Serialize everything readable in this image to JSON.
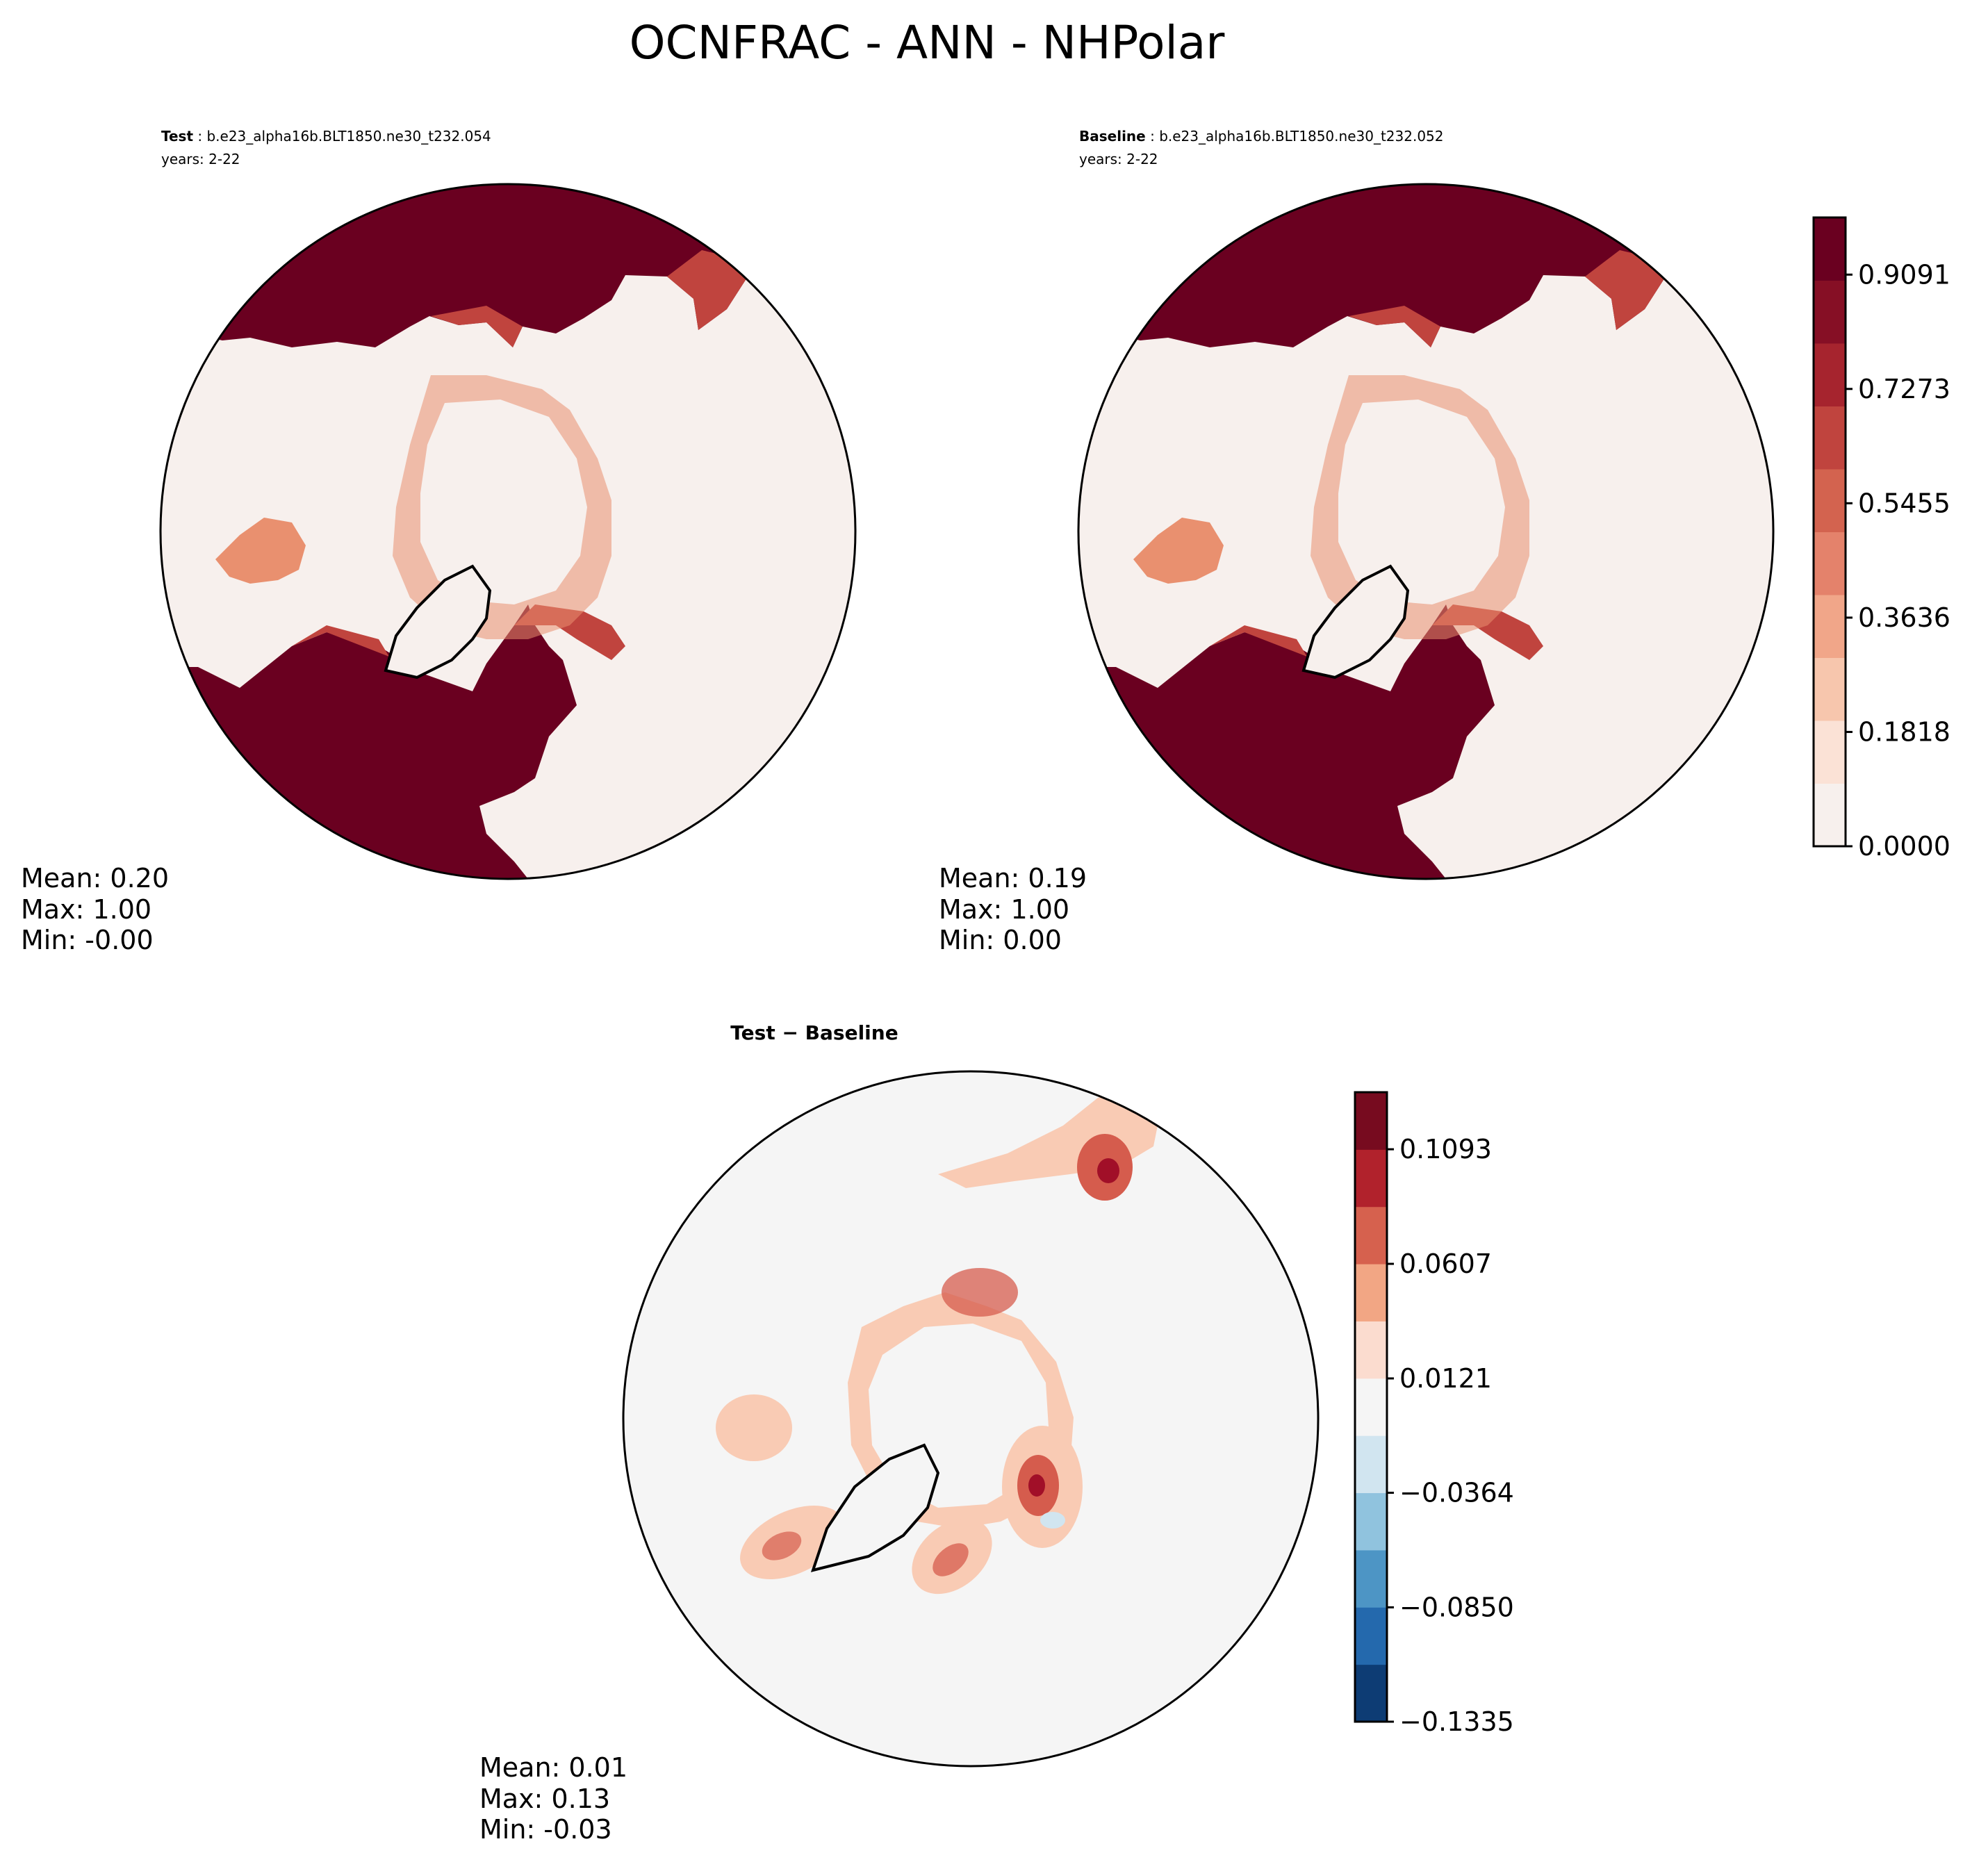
{
  "figure": {
    "title": "OCNFRAC - ANN - NHPolar"
  },
  "chart_data": [
    {
      "type": "contour-map",
      "panel": "test",
      "label": "Test",
      "case": "b.e23_alpha16b.BLT1850.ne30_t232.054",
      "years": "years: 2-22",
      "stats": {
        "mean": "Mean:  0.20",
        "max": "Max:  1.00",
        "min": "Min: -0.00"
      }
    },
    {
      "type": "contour-map",
      "panel": "baseline",
      "label": "Baseline",
      "case": "b.e23_alpha16b.BLT1850.ne30_t232.052",
      "years": "years: 2-22",
      "stats": {
        "mean": "Mean:  0.19",
        "max": "Max:  1.00",
        "min": "Min:  0.00"
      }
    },
    {
      "type": "contour-map",
      "panel": "difference",
      "label": "Test − Baseline",
      "stats": {
        "mean": "Mean:  0.01",
        "max": "Max:  0.13",
        "min": "Min: -0.03"
      }
    }
  ],
  "colorbars": {
    "main": {
      "range": [
        0,
        1
      ],
      "ticks": [
        "0.9091",
        "0.7273",
        "0.5455",
        "0.3636",
        "0.1818",
        "0.0000"
      ],
      "tick_values": [
        0.9091,
        0.7273,
        0.5455,
        0.3636,
        0.1818,
        0.0
      ],
      "levels": [
        "#f7f0ed",
        "#fbe2d6",
        "#f7c6ad",
        "#f1a689",
        "#e4826b",
        "#d3634f",
        "#c0443e",
        "#a6242e",
        "#860f25",
        "#6a0020"
      ]
    },
    "diff": {
      "range": [
        -0.1335,
        0.1335
      ],
      "ticks": [
        "0.1093",
        "0.0607",
        "0.0121",
        "−0.0364",
        "−0.0850",
        "−0.1335"
      ],
      "tick_values": [
        0.1093,
        0.0607,
        0.0121,
        -0.0364,
        -0.085,
        -0.1335
      ],
      "levels": [
        "#0d3c74",
        "#2469ad",
        "#4d95c5",
        "#90c3de",
        "#d1e5f0",
        "#f5f5f5",
        "#fbdccf",
        "#f2a684",
        "#d6614e",
        "#b1222c",
        "#770b1f"
      ]
    }
  },
  "colors": {
    "ocean_dark": "#6a0020",
    "land_pale": "#f7f0ed",
    "mid_red": "#c0443e",
    "salmon": "#e9906f",
    "diff_bg": "#f5f5f5",
    "diff_pink": "#f9cbb4",
    "diff_red": "#d55c4d",
    "diff_dark": "#a10f28",
    "diff_blue": "#d1e5f0"
  }
}
